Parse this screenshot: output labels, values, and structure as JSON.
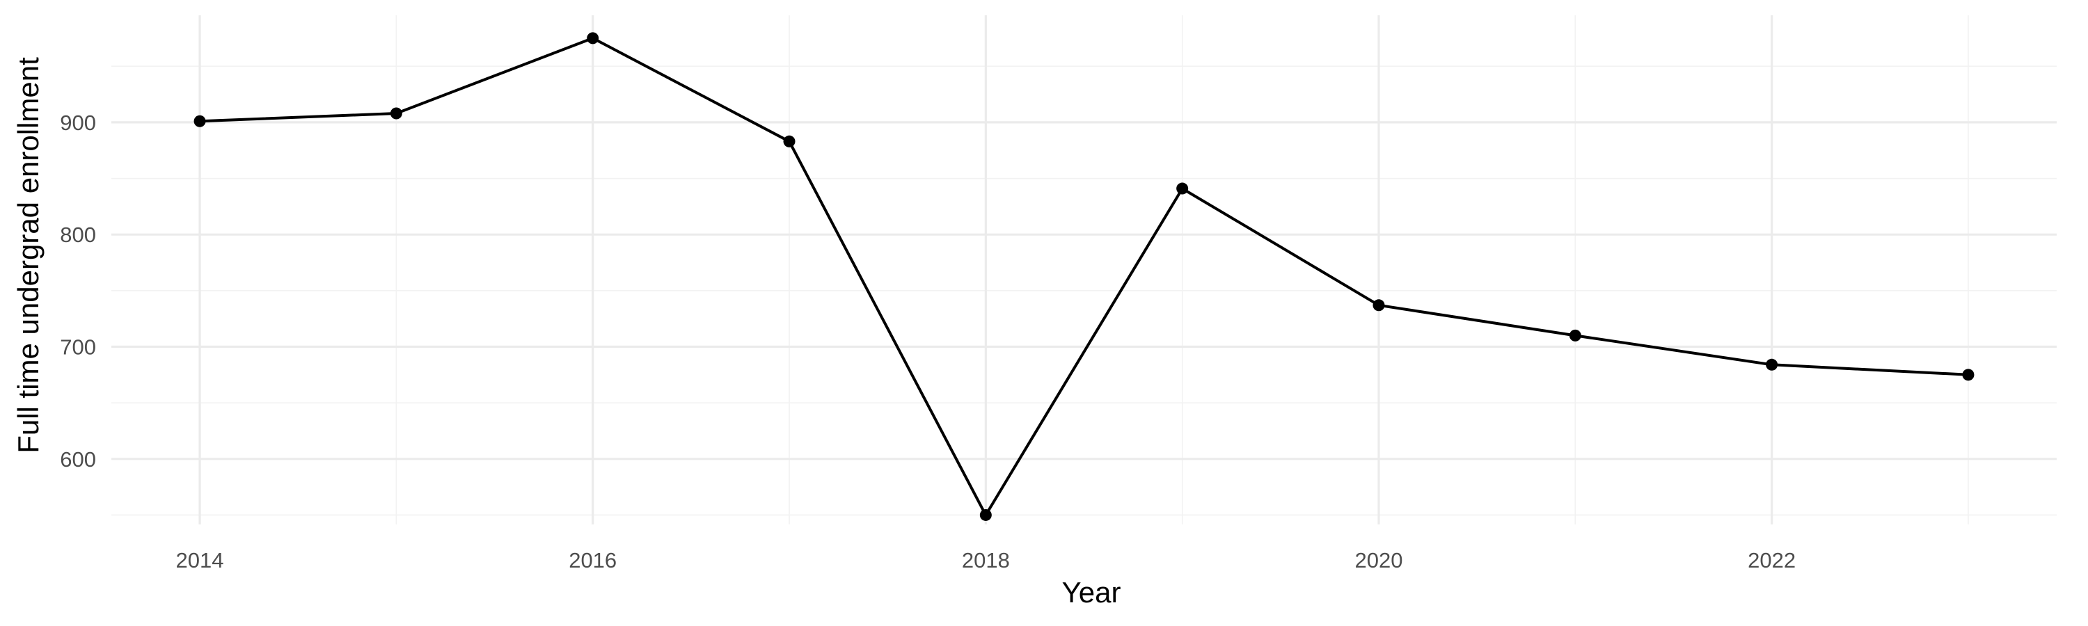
{
  "chart_data": {
    "type": "line",
    "title": "",
    "xlabel": "Year",
    "ylabel": "Full time undergrad enrollment",
    "xlim": [
      2013.55,
      2023.45
    ],
    "ylim": [
      541.6,
      995.4
    ],
    "x_ticks": [
      2014,
      2016,
      2018,
      2020,
      2022
    ],
    "x_minor_ticks": [
      2015,
      2017,
      2019,
      2021,
      2023
    ],
    "y_ticks": [
      600,
      700,
      800,
      900
    ],
    "y_minor_ticks": [
      550,
      650,
      750,
      850,
      950
    ],
    "grid": true,
    "legend": "none",
    "line_color": "#000000",
    "point_color": "#000000",
    "x": [
      2014,
      2015,
      2016,
      2017,
      2018,
      2019,
      2020,
      2021,
      2022,
      2023
    ],
    "series": [
      {
        "values": [
          901,
          908,
          975,
          883,
          550,
          841,
          737,
          710,
          684,
          675
        ]
      }
    ]
  }
}
